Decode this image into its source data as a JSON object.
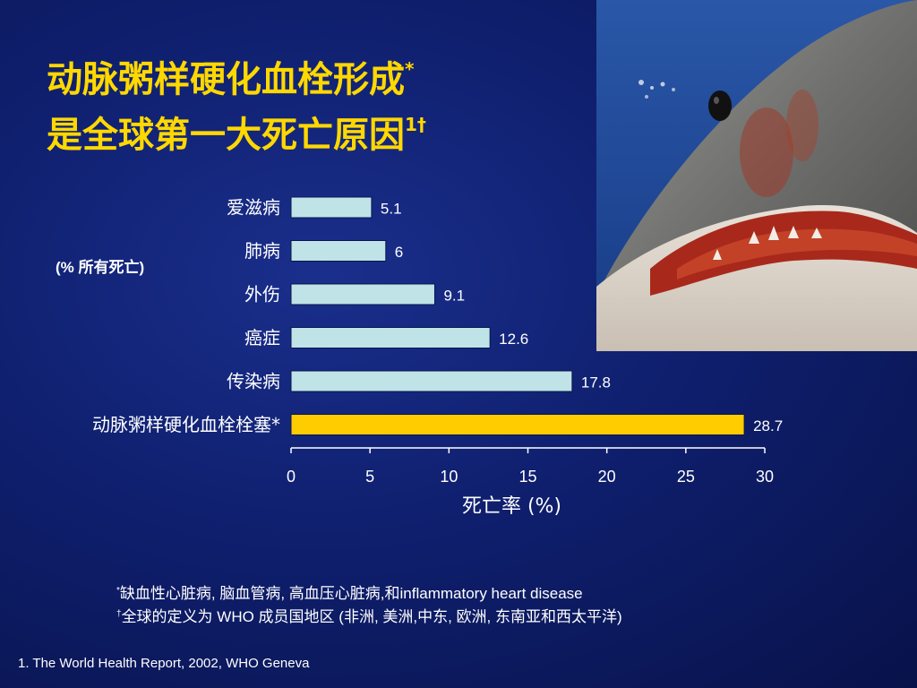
{
  "title": {
    "line1": "动脉粥样硬化血栓形成",
    "line1_mark": "*",
    "line2": "是全球第一大死亡原因",
    "line2_mark": "1†"
  },
  "unit_label": "(% 所有死亡)",
  "chart_data": {
    "type": "bar",
    "orientation": "horizontal",
    "categories": [
      "爱滋病",
      "肺病",
      "外伤",
      "癌症",
      "传染病",
      "动脉粥样硬化血栓栓塞*"
    ],
    "values": [
      5.1,
      6,
      9.1,
      12.6,
      17.8,
      28.7
    ],
    "value_labels": [
      "5.1",
      "6",
      "9.1",
      "12.6",
      "17.8",
      "28.7"
    ],
    "xlabel": "死亡率 (%)",
    "xlim": [
      0,
      30
    ],
    "xticks": [
      0,
      5,
      10,
      15,
      20,
      25,
      30
    ],
    "grid": false,
    "colors": {
      "default": "#bfe3e6",
      "highlight": "#ffcc00",
      "axis": "#ffffff"
    },
    "highlight_index": 5
  },
  "footnotes": {
    "line1_mark": "*",
    "line1": "缺血性心脏病, 脑血管病, 高血压心脏病,和inflammatory heart disease",
    "line2_mark": "†",
    "line2": "全球的定义为 WHO 成员国地区 (非洲, 美洲,中东, 欧洲, 东南亚和西太平洋)"
  },
  "reference": "1. The World Health Report, 2002, WHO Geneva",
  "image": {
    "icon": "shark-photo"
  }
}
